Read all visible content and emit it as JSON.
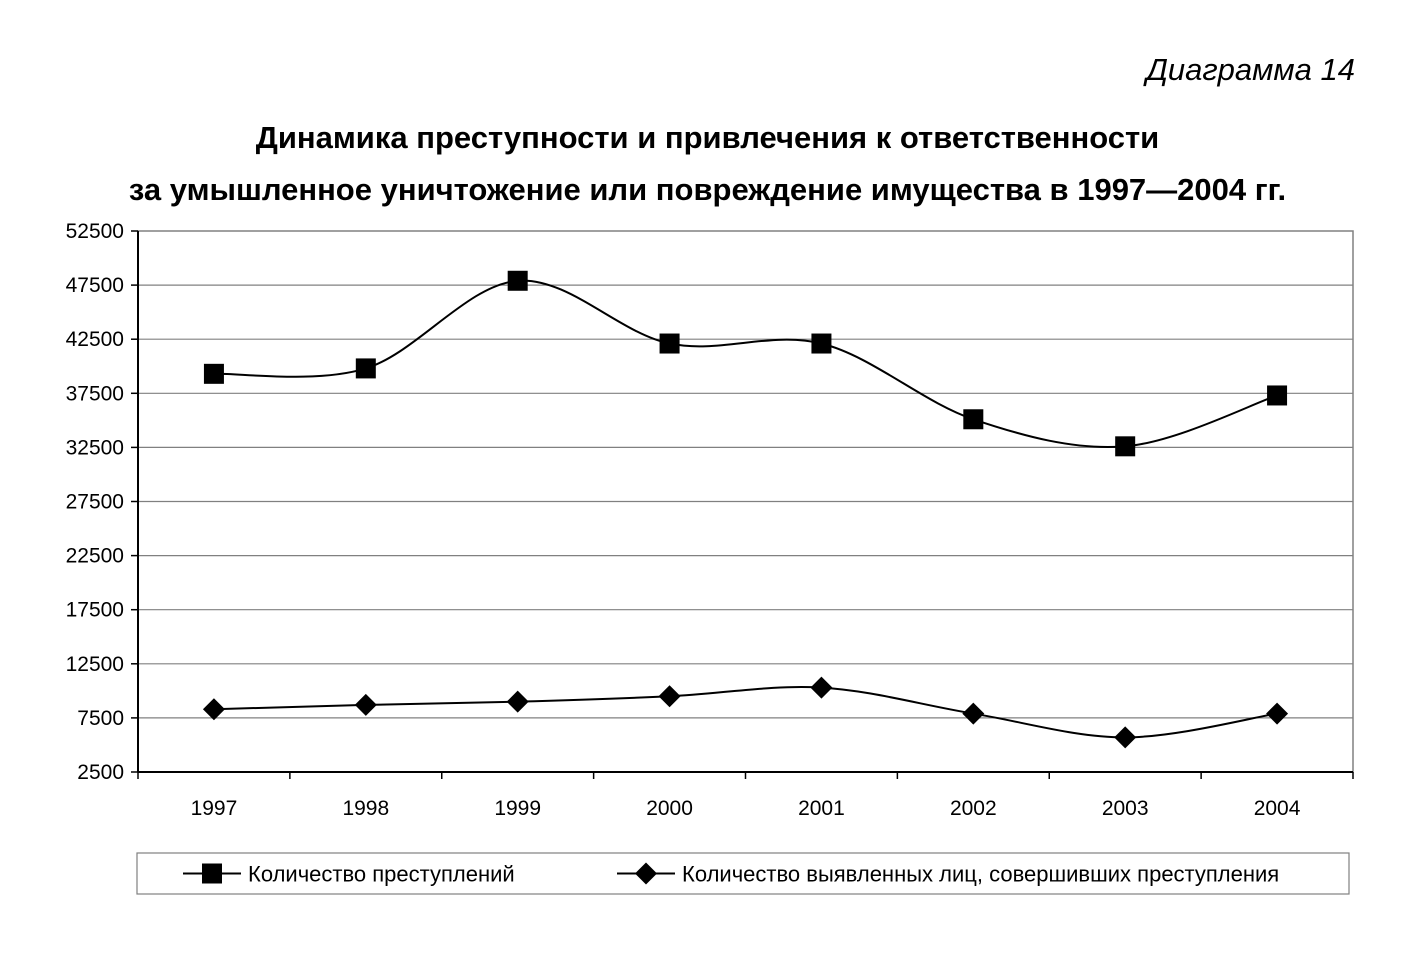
{
  "caption": "Диаграмма 14",
  "title_line1": "Динамика преступности и привлечения к ответственности",
  "title_line2": "за умышленное уничтожение или повреждение имущества в 1997—2004 гг.",
  "chart_data": {
    "type": "line",
    "categories": [
      "1997",
      "1998",
      "1999",
      "2000",
      "2001",
      "2002",
      "2003",
      "2004"
    ],
    "series": [
      {
        "name": "Количество преступлений",
        "marker": "square",
        "values": [
          39300,
          39800,
          47900,
          42100,
          42100,
          35100,
          32600,
          37300
        ]
      },
      {
        "name": "Количество выявленных лиц, совершивших преступления",
        "marker": "diamond",
        "values": [
          8300,
          8700,
          9000,
          9500,
          10300,
          7900,
          5700,
          7900
        ]
      }
    ],
    "yticks": [
      "52500",
      "47500",
      "42500",
      "37500",
      "32500",
      "27500",
      "22500",
      "17500",
      "12500",
      "7500",
      "2500"
    ],
    "ylim": [
      2500,
      52500
    ],
    "grid": true,
    "smooth": true,
    "legend_position": "bottom",
    "colors": {
      "line": "#000000",
      "grid": "#808080",
      "background": "#ffffff"
    }
  }
}
